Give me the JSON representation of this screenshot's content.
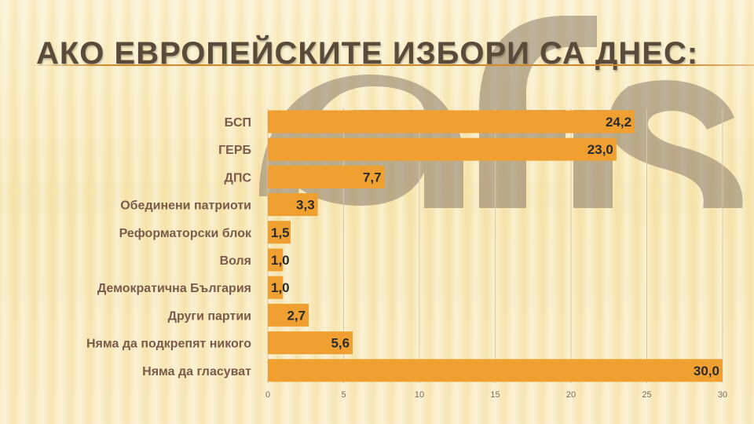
{
  "slide": {
    "title": "Ако европейските избори са днес:"
  },
  "watermark": {
    "text": "afis"
  },
  "colors": {
    "bar": "#f0a030",
    "bar_value_text": "#2b2b2b",
    "category_text": "#7a5a4a",
    "title_text": "#5a4a3a",
    "watermark": "#8a7a68"
  },
  "chart_data": {
    "type": "bar",
    "orientation": "horizontal",
    "categories": [
      "БСП",
      "ГЕРБ",
      "ДПС",
      "Обединени патриоти",
      "Реформаторски блок",
      "Воля",
      "Демократична България",
      "Други партии",
      "Няма да подкрепят никого",
      "Няма да гласуват"
    ],
    "values": [
      24.2,
      23.0,
      7.7,
      3.3,
      1.5,
      1.0,
      1.0,
      2.7,
      5.6,
      30.0
    ],
    "value_labels": [
      "24,2",
      "23,0",
      "7,7",
      "3,3",
      "1,5",
      "1,0",
      "1,0",
      "2,7",
      "5,6",
      "30,0"
    ],
    "xlim": [
      0,
      30
    ],
    "xticks": [
      0,
      5,
      10,
      15,
      20,
      25,
      30
    ],
    "grid": true,
    "legend": "none"
  }
}
